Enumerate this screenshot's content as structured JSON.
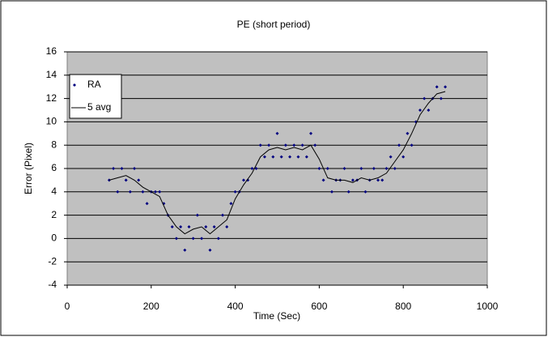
{
  "chart_data": {
    "type": "scatter",
    "title": "PE (short period)",
    "x_label": "Time (Sec)",
    "y_label": "Error (Pixel)",
    "xlim": [
      0,
      1000
    ],
    "xticks": [
      0,
      200,
      400,
      600,
      800,
      1000
    ],
    "ylim": [
      -4,
      16
    ],
    "yticks": [
      -4,
      -2,
      0,
      2,
      4,
      6,
      8,
      10,
      12,
      14,
      16
    ],
    "grid": true,
    "legend": "upper left",
    "background": "#c0c0c0",
    "series": [
      {
        "name": "RA",
        "mode": "markers",
        "color": "#000080",
        "x": [
          100,
          110,
          120,
          130,
          140,
          150,
          160,
          170,
          180,
          190,
          200,
          210,
          220,
          230,
          240,
          250,
          260,
          270,
          280,
          290,
          300,
          310,
          320,
          330,
          340,
          350,
          360,
          370,
          380,
          390,
          400,
          410,
          420,
          430,
          440,
          450,
          460,
          470,
          480,
          490,
          500,
          510,
          520,
          530,
          540,
          550,
          560,
          570,
          580,
          590,
          600,
          610,
          620,
          630,
          640,
          650,
          660,
          670,
          680,
          690,
          700,
          710,
          720,
          730,
          740,
          750,
          760,
          770,
          780,
          790,
          800,
          810,
          820,
          830,
          840,
          850,
          860,
          870,
          880,
          890,
          900
        ],
        "values": [
          5,
          6,
          4,
          6,
          5,
          4,
          6,
          5,
          4,
          3,
          4,
          4,
          4,
          3,
          2,
          1,
          0,
          1,
          -1,
          1,
          0,
          2,
          0,
          1,
          -1,
          1,
          0,
          2,
          1,
          3,
          4,
          4,
          5,
          5,
          6,
          6,
          8,
          7,
          8,
          7,
          9,
          7,
          8,
          7,
          8,
          7,
          8,
          7,
          9,
          8,
          6,
          5,
          6,
          4,
          5,
          5,
          6,
          4,
          5,
          5,
          6,
          4,
          5,
          6,
          5,
          5,
          6,
          7,
          6,
          8,
          7,
          9,
          8,
          10,
          11,
          12,
          11,
          12,
          13,
          12,
          13
        ]
      },
      {
        "name": "5 avg",
        "mode": "line",
        "color": "#000000",
        "x": [
          100,
          120,
          140,
          160,
          180,
          200,
          220,
          240,
          260,
          280,
          300,
          320,
          340,
          360,
          380,
          400,
          420,
          440,
          460,
          480,
          500,
          520,
          540,
          560,
          580,
          600,
          620,
          640,
          660,
          680,
          700,
          720,
          740,
          760,
          780,
          800,
          820,
          840,
          860,
          880,
          900
        ],
        "values": [
          5,
          5.2,
          5.4,
          5,
          4.4,
          4,
          3.6,
          2,
          1,
          0.4,
          0.8,
          1,
          0.4,
          1,
          1.6,
          3.4,
          4.6,
          5.6,
          7,
          7.6,
          7.8,
          7.6,
          7.8,
          7.6,
          8,
          6.8,
          5.2,
          5,
          5,
          4.8,
          5.2,
          5,
          5.2,
          5.6,
          6.6,
          7.6,
          9,
          10.6,
          11.6,
          12.4,
          12.6
        ]
      }
    ]
  }
}
